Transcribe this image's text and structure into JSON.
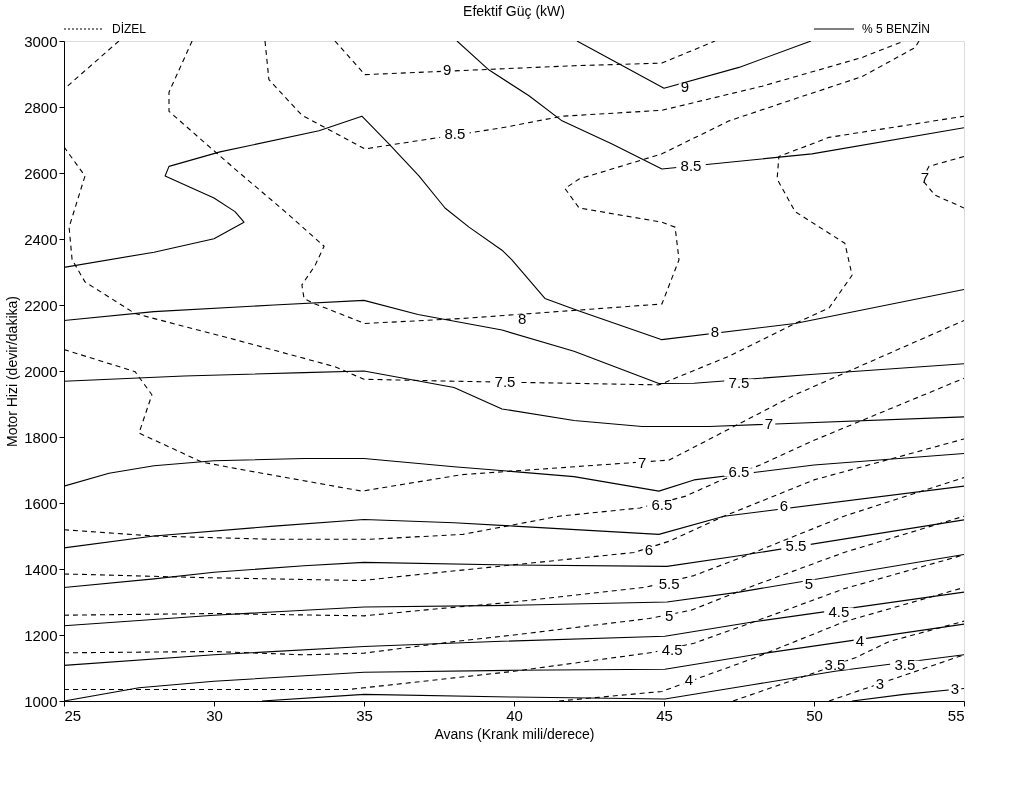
{
  "chart_data": {
    "type": "line",
    "title": "Efektif Güç (kW)",
    "xlabel": "Avans (Krank mili/derece)",
    "ylabel": "Motor Hizi (devir/dakika)",
    "xlim": [
      25,
      55
    ],
    "xticks": [
      25,
      30,
      35,
      40,
      45,
      50,
      55
    ],
    "ylim": [
      1000,
      3000
    ],
    "yticks": [
      1000,
      1200,
      1400,
      1600,
      1800,
      2000,
      2200,
      2400,
      2600,
      2800,
      3000
    ],
    "grid": false,
    "legend": "top",
    "series": [
      {
        "name": "DİZEL",
        "color": "#000000",
        "line_style": "dashed",
        "x": [
          34.03,
          35.03,
          42,
          44.93,
          46.7
        ],
        "values": [
          3000,
          2898,
          2925,
          2933,
          3000
        ]
      },
      {
        "color": "#000000",
        "line_style": "dashed",
        "x": [
          31.7,
          31.83,
          32.93,
          35.03,
          39.6,
          41.6,
          44.93,
          48.27,
          51.6,
          53
        ],
        "values": [
          3000,
          2883,
          2775,
          2673,
          2737,
          2772,
          2790,
          2863,
          2950,
          3000
        ]
      },
      {
        "color": "#000000",
        "line_style": "dashed",
        "x": [
          29.27,
          28.5,
          28.5,
          29.6,
          30.7,
          32.37,
          33.67,
          33.37,
          32.93,
          33,
          33.37,
          35.03,
          38.27,
          44.93,
          45.5,
          45.37,
          44.93,
          42.17,
          41.7,
          42.17,
          44.93,
          47.17,
          49.37,
          51.6,
          53.37,
          53.5
        ],
        "values": [
          3000,
          2845,
          2787,
          2699,
          2612,
          2483,
          2378,
          2320,
          2261,
          2220,
          2203,
          2144,
          2159,
          2203,
          2337,
          2436,
          2451,
          2494,
          2553,
          2582,
          2658,
          2758,
          2825,
          2892,
          2980,
          3000
        ]
      },
      {
        "color": "#000000",
        "line_style": "dashed",
        "x": [
          26.83,
          25
        ],
        "values": [
          3000,
          2854
        ]
      },
      {
        "color": "#000000",
        "line_style": "dashed",
        "x": [
          25,
          25.7,
          25.17,
          25.27,
          25.7,
          27.37,
          30.7,
          34.03,
          35,
          38,
          44.83,
          47.17,
          49.37,
          50.5,
          51.27,
          51.03,
          49.37,
          48.77,
          48.83,
          50.5,
          55
        ],
        "values": [
          2679,
          2591,
          2436,
          2337,
          2270,
          2174,
          2095,
          2013,
          1975,
          1969,
          1958,
          2045,
          2144,
          2191,
          2290,
          2387,
          2483,
          2582,
          2650,
          2708,
          2772
        ]
      },
      {
        "color": "#000000",
        "line_style": "dashed",
        "x": [
          25,
          27.37,
          27.93,
          27.5,
          29.6,
          31,
          34.93,
          38.27,
          45.17,
          49.37,
          55
        ],
        "values": [
          2065,
          1998,
          1928,
          1812,
          1724,
          1700,
          1636,
          1686,
          1730,
          1928,
          2153
        ]
      },
      {
        "color": "#000000",
        "line_style": "dashed",
        "x": [
          55,
          53.83,
          53.6,
          54.03,
          55
        ],
        "values": [
          2650,
          2620,
          2580,
          2533,
          2494
        ]
      },
      {
        "color": "#000000",
        "line_style": "dashed",
        "x": [
          25,
          28,
          32,
          35.2,
          38.3,
          41.5,
          44.2,
          45.7,
          46.8,
          48.2,
          50,
          55
        ],
        "values": [
          1519,
          1500,
          1490,
          1490,
          1505,
          1560,
          1585,
          1620,
          1665,
          1715,
          1790,
          1978
        ]
      },
      {
        "color": "#000000",
        "line_style": "dashed",
        "x": [
          25,
          29.6,
          34.93,
          37,
          39.6,
          44,
          45.2,
          47,
          50,
          55
        ],
        "values": [
          1385,
          1374,
          1365,
          1385,
          1409,
          1450,
          1485,
          1560,
          1670,
          1794
        ]
      },
      {
        "color": "#000000",
        "line_style": "dashed",
        "x": [
          25,
          30,
          35,
          37.5,
          40,
          44.4,
          46,
          48,
          51,
          55
        ],
        "values": [
          1260,
          1265,
          1258,
          1280,
          1300,
          1345,
          1380,
          1450,
          1560,
          1677
        ]
      },
      {
        "color": "#000000",
        "line_style": "dashed",
        "x": [
          25,
          30,
          33,
          35,
          38,
          40,
          44.5,
          45.9,
          48,
          51,
          55
        ],
        "values": [
          1146,
          1150,
          1140,
          1145,
          1180,
          1200,
          1250,
          1275,
          1350,
          1450,
          1560
        ]
      },
      {
        "color": "#000000",
        "line_style": "dashed",
        "x": [
          25,
          30,
          34.5,
          35,
          38,
          40,
          44.6,
          46,
          48,
          51,
          55
        ],
        "values": [
          1035,
          1035,
          1035,
          1040,
          1070,
          1090,
          1147,
          1175,
          1240,
          1340,
          1443
        ]
      },
      {
        "color": "#000000",
        "line_style": "dashed",
        "x": [
          41.5,
          44.93,
          48,
          51,
          55
        ],
        "values": [
          1000,
          1029,
          1130,
          1240,
          1344
        ]
      },
      {
        "color": "#000000",
        "line_style": "dashed",
        "x": [
          47.3,
          50,
          51.4,
          52.5,
          55
        ],
        "values": [
          1000,
          1085,
          1132,
          1180,
          1242
        ]
      },
      {
        "color": "#000000",
        "line_style": "dashed",
        "x": [
          50.5,
          55
        ],
        "values": [
          1000,
          1140
        ]
      },
      {
        "name": "% 5 BENZİN",
        "color": "#000000",
        "line_style": "solid",
        "x": [
          42.1,
          45,
          47.5,
          49.9
        ],
        "values": [
          3000,
          2857,
          2920,
          3000
        ]
      },
      {
        "color": "#000000",
        "line_style": "solid",
        "x": [
          38.1,
          39.17,
          40.5,
          41.6,
          43.27,
          44.93,
          49.93,
          55
        ],
        "values": [
          3000,
          2912,
          2834,
          2758,
          2688,
          2612,
          2658,
          2737
        ]
      },
      {
        "color": "#000000",
        "line_style": "solid",
        "x": [
          25,
          28,
          30,
          31,
          30.7,
          30,
          28.37,
          28.5,
          30.2,
          33.5,
          34.93,
          35.83,
          36.83,
          37.7,
          38.5,
          39.6,
          39.93,
          41.03,
          42.17,
          44.93,
          49.37,
          55
        ],
        "values": [
          2314,
          2360,
          2401,
          2451,
          2483,
          2524,
          2591,
          2620,
          2664,
          2728,
          2772,
          2688,
          2591,
          2494,
          2436,
          2366,
          2337,
          2220,
          2182,
          2095,
          2144,
          2247
        ]
      },
      {
        "color": "#000000",
        "line_style": "solid",
        "x": [
          25,
          28,
          32,
          35,
          36.8,
          39.6,
          42,
          44.83,
          46,
          50,
          55
        ],
        "values": [
          2153,
          2180,
          2200,
          2214,
          2171,
          2124,
          2060,
          1962,
          1963,
          1990,
          2022
        ]
      },
      {
        "color": "#000000",
        "line_style": "solid",
        "x": [
          25,
          29,
          33,
          35,
          38,
          39.6,
          42,
          44.27,
          46.5,
          55
        ],
        "values": [
          1969,
          1985,
          1995,
          2000,
          1950,
          1885,
          1850,
          1832,
          1832,
          1861
        ]
      },
      {
        "color": "#000000",
        "line_style": "solid",
        "x": [
          25,
          26.5,
          28,
          30,
          33,
          35,
          38,
          42,
          44.83,
          46,
          50,
          55
        ],
        "values": [
          1651,
          1690,
          1713,
          1728,
          1735,
          1735,
          1710,
          1680,
          1636,
          1670,
          1715,
          1750
        ]
      },
      {
        "color": "#000000",
        "line_style": "solid",
        "x": [
          25,
          28,
          32,
          35,
          38,
          40,
          44.83,
          47,
          55
        ],
        "values": [
          1464,
          1500,
          1530,
          1550,
          1540,
          1530,
          1505,
          1560,
          1651
        ]
      },
      {
        "color": "#000000",
        "line_style": "solid",
        "x": [
          25,
          28,
          30,
          33,
          35,
          40,
          45.1,
          47.5,
          55
        ],
        "values": [
          1344,
          1370,
          1390,
          1410,
          1420,
          1412,
          1408,
          1440,
          1549
        ]
      },
      {
        "color": "#000000",
        "line_style": "solid",
        "x": [
          25,
          30,
          35,
          40,
          45.1,
          47.5,
          55
        ],
        "values": [
          1228,
          1260,
          1285,
          1290,
          1300,
          1330,
          1444
        ]
      },
      {
        "color": "#000000",
        "line_style": "solid",
        "x": [
          25,
          30,
          35,
          39.6,
          45.03,
          48,
          55
        ],
        "values": [
          1108,
          1140,
          1165,
          1181,
          1196,
          1240,
          1330
        ]
      },
      {
        "color": "#000000",
        "line_style": "solid",
        "x": [
          25,
          27.5,
          30,
          35,
          40,
          45.03,
          48,
          55
        ],
        "values": [
          1000,
          1040,
          1060,
          1087,
          1093,
          1096,
          1140,
          1233
        ]
      },
      {
        "color": "#000000",
        "line_style": "solid",
        "x": [
          31.6,
          35,
          40,
          45.03,
          48,
          50.7,
          55
        ],
        "values": [
          1000,
          1020,
          1012,
          1006,
          1050,
          1090,
          1140
        ]
      },
      {
        "color": "#000000",
        "line_style": "solid",
        "x": [
          51.27,
          53,
          55
        ],
        "values": [
          1000,
          1020,
          1038
        ]
      }
    ],
    "annotations": [
      {
        "text": "9",
        "x": 37.77,
        "y": 2912
      },
      {
        "text": "8.5",
        "x": 38.03,
        "y": 2717
      },
      {
        "text": "8",
        "x": 40.27,
        "y": 2159
      },
      {
        "text": "7.5",
        "x": 39.7,
        "y": 1966
      },
      {
        "text": "7",
        "x": 44.27,
        "y": 1721
      },
      {
        "text": "7",
        "x": 53.7,
        "y": 2585
      },
      {
        "text": "6.5",
        "x": 44.93,
        "y": 1593
      },
      {
        "text": "6",
        "x": 44.5,
        "y": 1458
      },
      {
        "text": "5.5",
        "x": 45.17,
        "y": 1356
      },
      {
        "text": "5",
        "x": 45.17,
        "y": 1257
      },
      {
        "text": "4.5",
        "x": 45.27,
        "y": 1155
      },
      {
        "text": "4",
        "x": 45.83,
        "y": 1064
      },
      {
        "text": "3.5",
        "x": 50.7,
        "y": 1108
      },
      {
        "text": "3",
        "x": 52.2,
        "y": 1052
      },
      {
        "text": "9",
        "x": 45.7,
        "y": 2860
      },
      {
        "text": "8.5",
        "x": 45.9,
        "y": 2620
      },
      {
        "text": "8",
        "x": 46.7,
        "y": 2118
      },
      {
        "text": "7.5",
        "x": 47.5,
        "y": 1963
      },
      {
        "text": "7",
        "x": 48.5,
        "y": 1838
      },
      {
        "text": "6.5",
        "x": 47.5,
        "y": 1693
      },
      {
        "text": "6",
        "x": 49,
        "y": 1590
      },
      {
        "text": "5.5",
        "x": 49.4,
        "y": 1470
      },
      {
        "text": "5",
        "x": 49.83,
        "y": 1356
      },
      {
        "text": "4.5",
        "x": 50.83,
        "y": 1271
      },
      {
        "text": "4",
        "x": 51.53,
        "y": 1181
      },
      {
        "text": "3.5",
        "x": 53.03,
        "y": 1110
      },
      {
        "text": "3",
        "x": 54.7,
        "y": 1035
      }
    ]
  }
}
